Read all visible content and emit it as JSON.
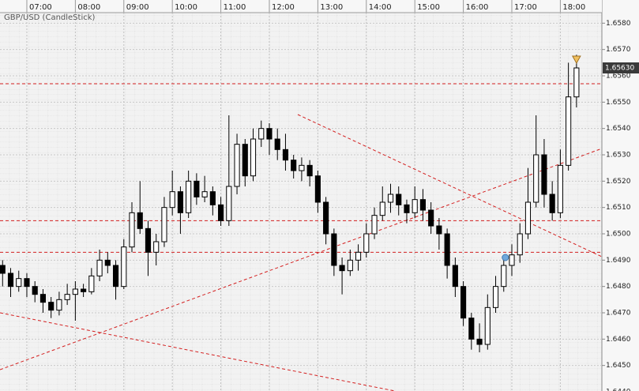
{
  "chart_data": {
    "type": "candlestick",
    "title": "GBP/USD (CandleStick)",
    "x": [
      390,
      400,
      410,
      420,
      430,
      440,
      450,
      460,
      470,
      480,
      490,
      500,
      510,
      520,
      530,
      540,
      550,
      560,
      570,
      580,
      590,
      600,
      610,
      620,
      630,
      640,
      650,
      660,
      670,
      680,
      690,
      700,
      710,
      720,
      730,
      740,
      750,
      760,
      770,
      780,
      790,
      800,
      810,
      820,
      830,
      840,
      850,
      860,
      870,
      880,
      890,
      900,
      910,
      920,
      930,
      940,
      950,
      960,
      970,
      980,
      990,
      1000,
      1010,
      1020,
      1030,
      1040,
      1050,
      1060,
      1070,
      1080,
      1090,
      1100
    ],
    "open": [
      1.6488,
      1.6485,
      1.648,
      1.6483,
      1.648,
      1.6477,
      1.6474,
      1.6471,
      1.6475,
      1.6477,
      1.6479,
      1.6478,
      1.6484,
      1.649,
      1.6488,
      1.648,
      1.6495,
      1.6508,
      1.6502,
      1.6493,
      1.6497,
      1.651,
      1.6516,
      1.6508,
      1.652,
      1.6514,
      1.6516,
      1.6511,
      1.6505,
      1.6518,
      1.6534,
      1.6522,
      1.6536,
      1.654,
      1.6536,
      1.6532,
      1.6528,
      1.6524,
      1.6526,
      1.6522,
      1.6512,
      1.65,
      1.6488,
      1.6486,
      1.649,
      1.6493,
      1.65,
      1.6507,
      1.6512,
      1.6515,
      1.6511,
      1.6508,
      1.6513,
      1.6509,
      1.6503,
      1.65,
      1.6488,
      1.648,
      1.6468,
      1.646,
      1.6458,
      1.6472,
      1.648,
      1.6488,
      1.6492,
      1.65,
      1.6512,
      1.653,
      1.6515,
      1.6508,
      1.6526,
      1.6552
    ],
    "high": [
      1.649,
      1.6487,
      1.6486,
      1.6485,
      1.6482,
      1.6479,
      1.6476,
      1.6478,
      1.6481,
      1.6482,
      1.6481,
      1.6487,
      1.6494,
      1.6493,
      1.649,
      1.6498,
      1.6512,
      1.652,
      1.6505,
      1.65,
      1.6514,
      1.6524,
      1.6518,
      1.6524,
      1.6523,
      1.6522,
      1.6518,
      1.6514,
      1.6545,
      1.6538,
      1.6536,
      1.654,
      1.6543,
      1.6542,
      1.654,
      1.6538,
      1.653,
      1.6529,
      1.6528,
      1.6524,
      1.6514,
      1.6502,
      1.6491,
      1.6494,
      1.6496,
      1.6504,
      1.651,
      1.6518,
      1.6519,
      1.6518,
      1.6513,
      1.6518,
      1.6517,
      1.6512,
      1.6506,
      1.6502,
      1.6491,
      1.6482,
      1.647,
      1.6466,
      1.6477,
      1.6484,
      1.6492,
      1.6496,
      1.6504,
      1.6525,
      1.6545,
      1.6536,
      1.652,
      1.6532,
      1.6565,
      1.6568
    ],
    "low": [
      1.648,
      1.6476,
      1.6478,
      1.6476,
      1.6474,
      1.647,
      1.6468,
      1.6469,
      1.6473,
      1.6467,
      1.6476,
      1.6477,
      1.6482,
      1.6485,
      1.6475,
      1.6479,
      1.6493,
      1.65,
      1.6484,
      1.6488,
      1.6495,
      1.6507,
      1.65,
      1.6506,
      1.6511,
      1.6512,
      1.6507,
      1.6503,
      1.6503,
      1.6515,
      1.6518,
      1.652,
      1.6533,
      1.653,
      1.6528,
      1.6524,
      1.6521,
      1.652,
      1.6518,
      1.6508,
      1.6496,
      1.6484,
      1.6477,
      1.6484,
      1.6486,
      1.6491,
      1.6498,
      1.6505,
      1.6508,
      1.6507,
      1.6504,
      1.6506,
      1.6505,
      1.65,
      1.6494,
      1.6483,
      1.6476,
      1.6465,
      1.6456,
      1.6455,
      1.6456,
      1.647,
      1.6478,
      1.6484,
      1.6489,
      1.6498,
      1.651,
      1.651,
      1.6505,
      1.6506,
      1.6524,
      1.6548
    ],
    "close": [
      1.6485,
      1.648,
      1.6483,
      1.648,
      1.6477,
      1.6474,
      1.6471,
      1.6475,
      1.6477,
      1.6479,
      1.6478,
      1.6484,
      1.649,
      1.6488,
      1.648,
      1.6495,
      1.6508,
      1.6502,
      1.6493,
      1.6497,
      1.651,
      1.6516,
      1.6508,
      1.652,
      1.6514,
      1.6516,
      1.6511,
      1.6505,
      1.6518,
      1.6534,
      1.6522,
      1.6536,
      1.654,
      1.6536,
      1.6532,
      1.6528,
      1.6524,
      1.6526,
      1.6522,
      1.6512,
      1.65,
      1.6488,
      1.6486,
      1.649,
      1.6493,
      1.65,
      1.6507,
      1.6512,
      1.6515,
      1.6511,
      1.6508,
      1.6513,
      1.6509,
      1.6503,
      1.65,
      1.6488,
      1.648,
      1.6468,
      1.646,
      1.6458,
      1.6472,
      1.648,
      1.6488,
      1.6492,
      1.65,
      1.6512,
      1.653,
      1.6515,
      1.6508,
      1.6526,
      1.6552,
      1.6563
    ],
    "up_color": "#ffffff",
    "down_color": "#000000",
    "xlim": [
      386.8,
      1131.4
    ],
    "ylim": [
      1.64403,
      1.65888
    ],
    "xticks": [
      {
        "value": 420,
        "label": "07:00"
      },
      {
        "value": 480,
        "label": "08:00"
      },
      {
        "value": 540,
        "label": "09:00"
      },
      {
        "value": 600,
        "label": "10:00"
      },
      {
        "value": 660,
        "label": "11:00"
      },
      {
        "value": 720,
        "label": "12:00"
      },
      {
        "value": 780,
        "label": "13:00"
      },
      {
        "value": 840,
        "label": "14:00"
      },
      {
        "value": 900,
        "label": "15:00"
      },
      {
        "value": 960,
        "label": "16:00"
      },
      {
        "value": 1020,
        "label": "17:00"
      },
      {
        "value": 1080,
        "label": "18:00"
      }
    ],
    "yticks": [
      {
        "value": 1.644,
        "label": "1.6440"
      },
      {
        "value": 1.645,
        "label": "1.6450"
      },
      {
        "value": 1.646,
        "label": "1.6460"
      },
      {
        "value": 1.647,
        "label": "1.6470"
      },
      {
        "value": 1.648,
        "label": "1.6480"
      },
      {
        "value": 1.649,
        "label": "1.6490"
      },
      {
        "value": 1.65,
        "label": "1.6500"
      },
      {
        "value": 1.651,
        "label": "1.6510"
      },
      {
        "value": 1.652,
        "label": "1.6520"
      },
      {
        "value": 1.653,
        "label": "1.6530"
      },
      {
        "value": 1.654,
        "label": "1.6540"
      },
      {
        "value": 1.655,
        "label": "1.6550"
      },
      {
        "value": 1.656,
        "label": "1.6560"
      },
      {
        "value": 1.657,
        "label": "1.6570"
      },
      {
        "value": 1.658,
        "label": "1.6580"
      }
    ],
    "grid": true,
    "line_color": "#d42020",
    "hlines": [
      1.6557,
      1.6505,
      1.6493
    ],
    "trendlines": [
      {
        "x": [
          755.2,
          1131.4
        ],
        "y": [
          1.65453,
          1.64913
        ]
      },
      {
        "x": [
          386.8,
          1131.4
        ],
        "y": [
          1.64484,
          1.65324
        ]
      },
      {
        "x": [
          386.8,
          875.4
        ],
        "y": [
          1.647,
          1.64403
        ]
      }
    ],
    "markers": [
      {
        "x": 1012,
        "y": 1.6491,
        "shape": "circle",
        "color": "#6fa8dc"
      },
      {
        "x": 1100,
        "y": 1.6566,
        "shape": "triangle",
        "color": "#f0c060"
      }
    ],
    "last_price": {
      "value": 1.6563,
      "label": "1.65630"
    }
  }
}
